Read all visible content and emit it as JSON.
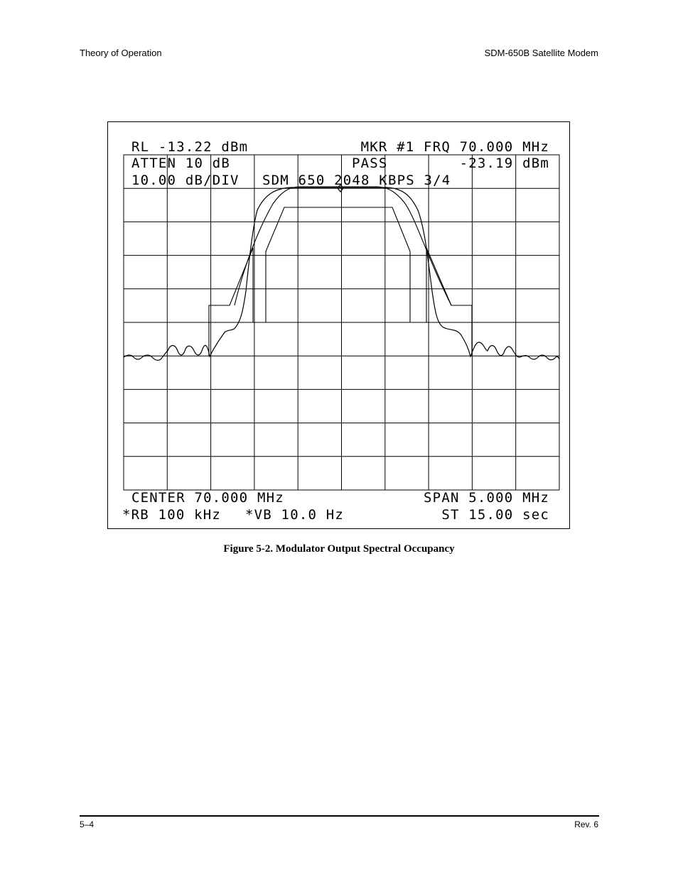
{
  "header": {
    "left": "Theory of Operation",
    "right": "SDM-650B Satellite Modem"
  },
  "figure": {
    "caption": "Figure 5-2.  Modulator Output Spectral Occupancy",
    "readouts": {
      "ref_level": "RL -13.22 dBm",
      "marker": "MKR #1 FRQ 70.000 MHz",
      "atten": "ATTEN 10 dB",
      "pass": "PASS",
      "marker_level": "-23.19 dBm",
      "scale": "10.00 dB/DIV",
      "trace_label": "SDM 650 2048 KBPS 3/4",
      "center": "CENTER 70.000 MHz",
      "span": "SPAN 5.000 MHz",
      "rbw": "*RB 100 kHz",
      "vbw": "*VB 10.0 Hz",
      "sweep": "ST 15.00 sec"
    }
  },
  "footer": {
    "left": "5–4",
    "right": "Rev. 6"
  }
}
